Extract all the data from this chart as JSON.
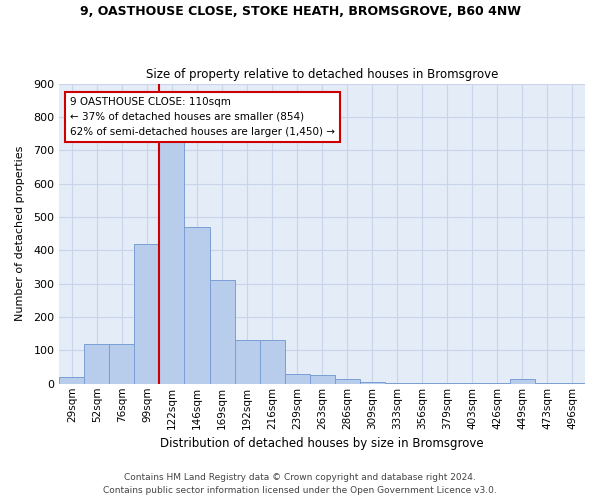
{
  "title_line1": "9, OASTHOUSE CLOSE, STOKE HEATH, BROMSGROVE, B60 4NW",
  "title_line2": "Size of property relative to detached houses in Bromsgrove",
  "xlabel": "Distribution of detached houses by size in Bromsgrove",
  "ylabel": "Number of detached properties",
  "footer_line1": "Contains HM Land Registry data © Crown copyright and database right 2024.",
  "footer_line2": "Contains public sector information licensed under the Open Government Licence v3.0.",
  "bin_labels": [
    "29sqm",
    "52sqm",
    "76sqm",
    "99sqm",
    "122sqm",
    "146sqm",
    "169sqm",
    "192sqm",
    "216sqm",
    "239sqm",
    "263sqm",
    "286sqm",
    "309sqm",
    "333sqm",
    "356sqm",
    "379sqm",
    "403sqm",
    "426sqm",
    "449sqm",
    "473sqm",
    "496sqm"
  ],
  "bar_values": [
    20,
    120,
    120,
    420,
    750,
    470,
    310,
    130,
    130,
    30,
    25,
    15,
    5,
    2,
    2,
    2,
    2,
    2,
    15,
    2,
    2
  ],
  "bar_color": "#b8ccec",
  "bar_edge_color": "#7a9fd4",
  "grid_color": "#c8d4e8",
  "background_color": "#e4ecf8",
  "property_line_color": "#cc0000",
  "annotation_text_line1": "9 OASTHOUSE CLOSE: 110sqm",
  "annotation_text_line2": "← 37% of detached houses are smaller (854)",
  "annotation_text_line3": "62% of semi-detached houses are larger (1,450) →",
  "annotation_box_color": "#cc0000",
  "ylim": [
    0,
    900
  ],
  "yticks": [
    0,
    100,
    200,
    300,
    400,
    500,
    600,
    700,
    800,
    900
  ],
  "property_bin_idx": 4,
  "figsize": [
    6.0,
    5.0
  ],
  "dpi": 100
}
